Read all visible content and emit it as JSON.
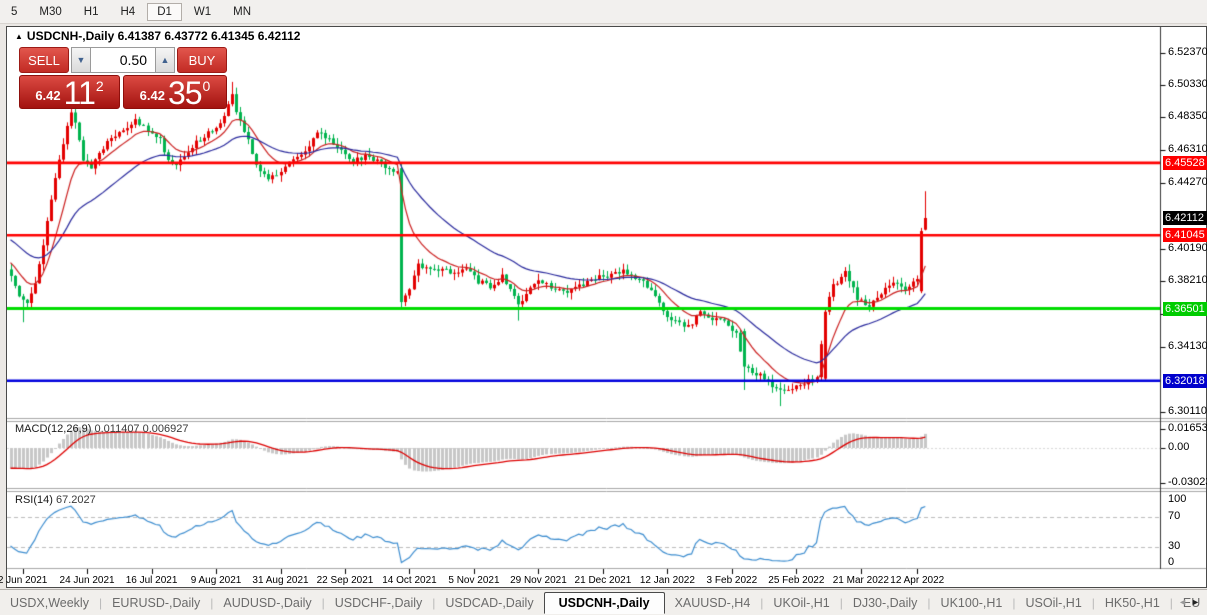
{
  "toolbar": {
    "timeframes": [
      {
        "label": "5",
        "active": false
      },
      {
        "label": "M30",
        "active": false
      },
      {
        "label": "H1",
        "active": false
      },
      {
        "label": "H4",
        "active": false
      },
      {
        "label": "D1",
        "active": true
      },
      {
        "label": "W1",
        "active": false
      },
      {
        "label": "MN",
        "active": false
      }
    ]
  },
  "header": {
    "collapse_icon": "▲",
    "symbol": "USDCNH-,Daily",
    "ohlc_line": "6.41387 6.43772 6.41345 6.42112"
  },
  "trade_panel": {
    "sell_label": "SELL",
    "buy_label": "BUY",
    "volume": "0.50",
    "spin_down_icon": "▼",
    "spin_up_icon": "▲",
    "sell_price_small": "6.42",
    "sell_price_big": "11",
    "sell_price_sup": "2",
    "buy_price_small": "6.42",
    "buy_price_big": "35",
    "buy_price_sup": "0"
  },
  "indicators": {
    "macd_label": "MACD(12,26,9)",
    "macd_values": "0.011407 0.006927",
    "rsi_label": "RSI(14)",
    "rsi_value": "67.2027"
  },
  "tabs": {
    "items": [
      {
        "label": "USDX,Weekly",
        "active": false
      },
      {
        "label": "EURUSD-,Daily",
        "active": false
      },
      {
        "label": "AUDUSD-,Daily",
        "active": false
      },
      {
        "label": "USDCHF-,Daily",
        "active": false
      },
      {
        "label": "USDCAD-,Daily",
        "active": false
      },
      {
        "label": "USDCNH-,Daily",
        "active": true
      },
      {
        "label": "XAUUSD-,H4",
        "active": false
      },
      {
        "label": "UKOil-,H1",
        "active": false
      },
      {
        "label": "DJ30-,Daily",
        "active": false
      },
      {
        "label": "UK100-,H1",
        "active": false
      },
      {
        "label": "USOil-,H1",
        "active": false
      },
      {
        "label": "HK50-,H1",
        "active": false
      },
      {
        "label": "EU",
        "active": false
      }
    ],
    "scroll_left": "◄",
    "scroll_right": "►"
  },
  "chart_data": {
    "type": "candlestick",
    "symbol": "USDCNH-,Daily",
    "current_ohlc": {
      "open": 6.41387,
      "high": 6.43772,
      "low": 6.41345,
      "close": 6.42112
    },
    "candle_count": 228,
    "price_axis": {
      "ticks": [
        6.5237,
        6.5033,
        6.4835,
        6.4631,
        6.4427,
        6.4019,
        6.3821,
        6.3617,
        6.3413,
        6.3011
      ],
      "special_labels": [
        {
          "text": "6.45528",
          "price": 6.45528,
          "bg": "#ff0000"
        },
        {
          "text": "6.42112",
          "price": 6.42112,
          "bg": "#000000"
        },
        {
          "text": "6.41045",
          "price": 6.41045,
          "bg": "#ff0000"
        },
        {
          "text": "6.36501",
          "price": 6.36501,
          "bg": "#00cc00"
        },
        {
          "text": "6.32018",
          "price": 6.32018,
          "bg": "#0000cc"
        }
      ]
    },
    "levels": [
      {
        "price": 6.45528,
        "color": "#ff0000",
        "width": 2.6
      },
      {
        "price": 6.41045,
        "color": "#ff0000",
        "width": 2.6
      },
      {
        "price": 6.36501,
        "color": "#00dd00",
        "width": 3
      },
      {
        "price": 6.32018,
        "color": "#0000dd",
        "width": 2.6
      }
    ],
    "macd_axis": {
      "ticks": [
        {
          "text": "0.01653",
          "v": 0.01653
        },
        {
          "text": "0.00",
          "v": 0.0
        },
        {
          "text": "-0.03023",
          "v": -0.03023
        }
      ]
    },
    "rsi_axis": {
      "ticks": [
        {
          "text": "100",
          "v": 100
        },
        {
          "text": "70",
          "v": 70
        },
        {
          "text": "30",
          "v": 30
        },
        {
          "text": "0",
          "v": 0
        }
      ],
      "dashed_levels": [
        70,
        30
      ]
    },
    "dates": [
      {
        "label": "2 Jun 2021",
        "day": 3
      },
      {
        "label": "24 Jun 2021",
        "day": 19
      },
      {
        "label": "16 Jul 2021",
        "day": 35
      },
      {
        "label": "9 Aug 2021",
        "day": 51
      },
      {
        "label": "31 Aug 2021",
        "day": 67
      },
      {
        "label": "22 Sep 2021",
        "day": 83
      },
      {
        "label": "14 Oct 2021",
        "day": 99
      },
      {
        "label": "5 Nov 2021",
        "day": 115
      },
      {
        "label": "29 Nov 2021",
        "day": 131
      },
      {
        "label": "21 Dec 2021",
        "day": 147
      },
      {
        "label": "12 Jan 2022",
        "day": 163
      },
      {
        "label": "3 Feb 2022",
        "day": 179
      },
      {
        "label": "25 Feb 2022",
        "day": 195
      },
      {
        "label": "21 Mar 2022",
        "day": 211
      },
      {
        "label": "12 Apr 2022",
        "day": 225
      }
    ],
    "close_waypoints": [
      [
        0,
        6.385
      ],
      [
        2,
        6.374
      ],
      [
        4,
        6.37
      ],
      [
        6,
        6.382
      ],
      [
        8,
        6.404
      ],
      [
        10,
        6.432
      ],
      [
        12,
        6.458
      ],
      [
        14,
        6.478
      ],
      [
        15,
        6.487
      ],
      [
        16,
        6.48
      ],
      [
        18,
        6.458
      ],
      [
        20,
        6.452
      ],
      [
        22,
        6.462
      ],
      [
        25,
        6.471
      ],
      [
        28,
        6.477
      ],
      [
        31,
        6.481
      ],
      [
        34,
        6.476
      ],
      [
        37,
        6.47
      ],
      [
        39,
        6.457
      ],
      [
        41,
        6.455
      ],
      [
        44,
        6.463
      ],
      [
        47,
        6.47
      ],
      [
        50,
        6.476
      ],
      [
        53,
        6.483
      ],
      [
        55,
        6.497
      ],
      [
        56,
        6.488
      ],
      [
        58,
        6.476
      ],
      [
        61,
        6.455
      ],
      [
        64,
        6.444
      ],
      [
        67,
        6.45
      ],
      [
        70,
        6.457
      ],
      [
        73,
        6.461
      ],
      [
        76,
        6.474
      ],
      [
        79,
        6.47
      ],
      [
        82,
        6.463
      ],
      [
        85,
        6.457
      ],
      [
        88,
        6.459
      ],
      [
        91,
        6.456
      ],
      [
        94,
        6.452
      ],
      [
        96,
        6.45
      ],
      [
        97,
        6.369
      ],
      [
        99,
        6.378
      ],
      [
        101,
        6.392
      ],
      [
        104,
        6.388
      ],
      [
        107,
        6.391
      ],
      [
        110,
        6.386
      ],
      [
        113,
        6.389
      ],
      [
        116,
        6.382
      ],
      [
        119,
        6.379
      ],
      [
        122,
        6.385
      ],
      [
        125,
        6.374
      ],
      [
        126,
        6.368
      ],
      [
        128,
        6.374
      ],
      [
        131,
        6.381
      ],
      [
        134,
        6.379
      ],
      [
        137,
        6.375
      ],
      [
        140,
        6.378
      ],
      [
        143,
        6.381
      ],
      [
        146,
        6.384
      ],
      [
        149,
        6.386
      ],
      [
        152,
        6.388
      ],
      [
        155,
        6.384
      ],
      [
        158,
        6.379
      ],
      [
        160,
        6.372
      ],
      [
        162,
        6.363
      ],
      [
        165,
        6.357
      ],
      [
        168,
        6.354
      ],
      [
        171,
        6.362
      ],
      [
        174,
        6.359
      ],
      [
        177,
        6.356
      ],
      [
        180,
        6.35
      ],
      [
        182,
        6.329
      ],
      [
        185,
        6.325
      ],
      [
        188,
        6.319
      ],
      [
        191,
        6.314
      ],
      [
        194,
        6.316
      ],
      [
        197,
        6.319
      ],
      [
        200,
        6.321
      ],
      [
        202,
        6.363
      ],
      [
        204,
        6.379
      ],
      [
        207,
        6.388
      ],
      [
        210,
        6.372
      ],
      [
        213,
        6.367
      ],
      [
        216,
        6.375
      ],
      [
        219,
        6.382
      ],
      [
        222,
        6.378
      ],
      [
        225,
        6.382
      ],
      [
        226,
        6.41
      ],
      [
        227,
        6.421
      ]
    ],
    "candle_overrides": {
      "3": {
        "l": 6.3565
      },
      "15": {
        "h": 6.4935
      },
      "55": {
        "h": 6.5055
      },
      "97": {
        "o": 6.452,
        "h": 6.4545,
        "l": 6.3655,
        "c": 6.369
      },
      "126": {
        "l": 6.3575
      },
      "182": {
        "o": 6.351,
        "h": 6.3525,
        "l": 6.3145,
        "c": 6.329
      },
      "191": {
        "l": 6.3045
      },
      "202": {
        "o": 6.3215,
        "h": 6.3655,
        "l": 6.32,
        "c": 6.363
      },
      "226": {
        "o": 6.3757,
        "h": 6.415,
        "l": 6.3745,
        "c": 6.413
      },
      "227": {
        "o": 6.41387,
        "h": 6.43772,
        "l": 6.41345,
        "c": 6.42112
      }
    },
    "colors": {
      "bull_candle": "#e30000",
      "bear_candle": "#00b44e",
      "ma_fast": "#cc2222",
      "ma_slow": "#2b2b9e",
      "macd_hist": "#c7c7c7",
      "macd_signal": "#dd0000",
      "rsi_line": "#3e8ed0"
    }
  }
}
